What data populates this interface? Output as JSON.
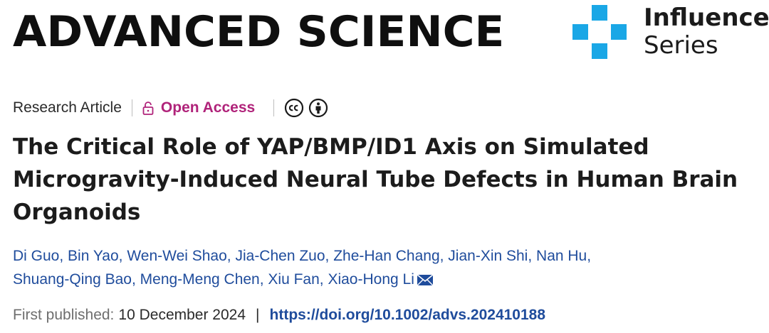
{
  "header": {
    "journal_name": "ADVANCED SCIENCE",
    "series_line1": "Influence",
    "series_line2": "Series",
    "logo_color": "#1aa7e6"
  },
  "meta": {
    "article_type": "Research Article",
    "access_label": "Open Access",
    "access_color": "#b0237a",
    "icons": [
      "lock-icon",
      "cc-icon",
      "by-attribution-icon"
    ]
  },
  "article": {
    "title": "The Critical Role of YAP/BMP/ID1 Axis on Simulated Microgravity-Induced Neural Tube Defects in Human Brain Organoids",
    "authors": [
      "Di Guo",
      "Bin Yao",
      "Wen-Wei Shao",
      "Jia-Chen Zuo",
      "Zhe-Han Chang",
      "Jian-Xin Shi",
      "Nan Hu",
      "Shuang-Qing Bao",
      "Meng-Meng Chen",
      "Xiu Fan",
      "Xiao-Hong Li"
    ],
    "author_link_color": "#1f4c9c",
    "first_published_label": "First published:",
    "first_published_date": "10 December 2024",
    "doi": "https://doi.org/10.1002/advs.202410188"
  }
}
